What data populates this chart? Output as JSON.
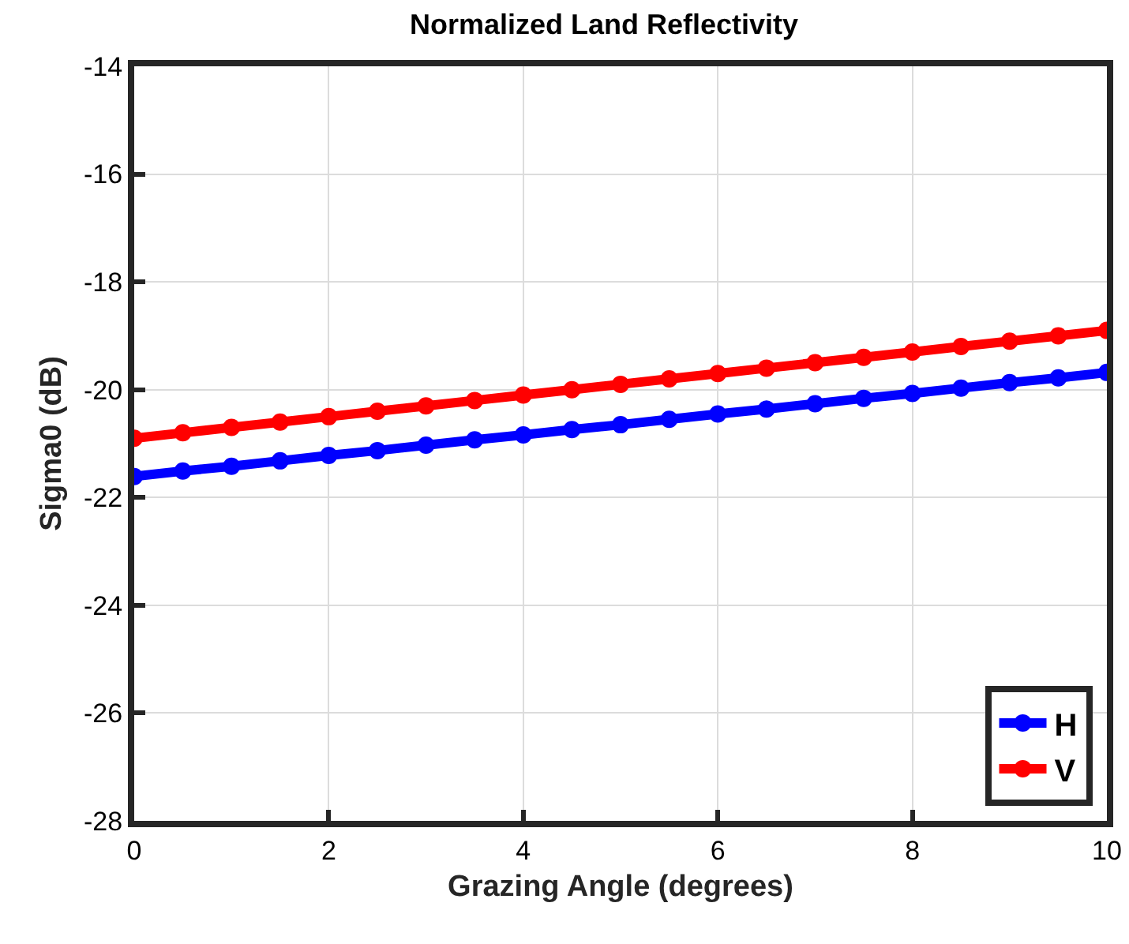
{
  "chart_data": {
    "type": "line",
    "title": "Normalized Land Reflectivity",
    "xlabel": "Grazing Angle (degrees)",
    "ylabel": "Sigma0 (dB)",
    "x": [
      0,
      0.5,
      1,
      1.5,
      2,
      2.5,
      3,
      3.5,
      4,
      4.5,
      5,
      5.5,
      6,
      6.5,
      7,
      7.5,
      8,
      8.5,
      9,
      9.5,
      10
    ],
    "series": [
      {
        "name": "H",
        "color": "#0000ff",
        "values": [
          -21.61,
          -21.51,
          -21.42,
          -21.32,
          -21.22,
          -21.13,
          -21.03,
          -20.93,
          -20.84,
          -20.74,
          -20.65,
          -20.55,
          -20.45,
          -20.36,
          -20.26,
          -20.16,
          -20.07,
          -19.97,
          -19.87,
          -19.78,
          -19.68
        ]
      },
      {
        "name": "V",
        "color": "#ff0000",
        "values": [
          -20.9,
          -20.8,
          -20.7,
          -20.6,
          -20.5,
          -20.4,
          -20.3,
          -20.2,
          -20.1,
          -20.0,
          -19.9,
          -19.8,
          -19.7,
          -19.6,
          -19.5,
          -19.4,
          -19.3,
          -19.2,
          -19.1,
          -19.0,
          -18.9
        ]
      }
    ],
    "xlim": [
      0,
      10
    ],
    "xticks": [
      0,
      2,
      4,
      6,
      8,
      10
    ],
    "ylim": [
      -28,
      -14
    ],
    "yticks": [
      -28,
      -26,
      -24,
      -22,
      -20,
      -18,
      -16,
      -14
    ],
    "grid": true,
    "legend": "bottom right",
    "marker": "circle",
    "line_style": "solid"
  }
}
